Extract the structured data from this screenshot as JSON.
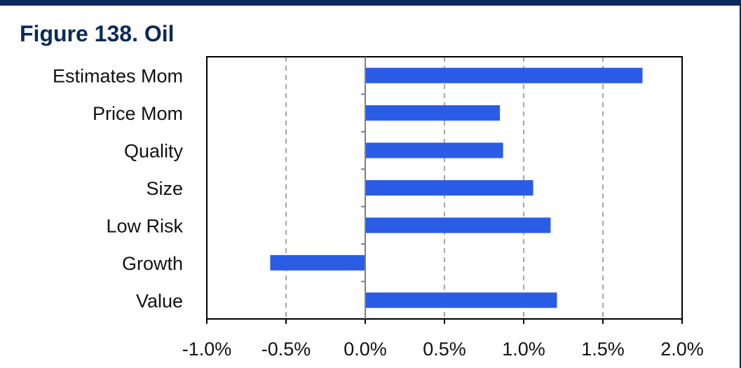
{
  "figure": {
    "title": "Figure 138. Oil"
  },
  "colors": {
    "bar": "#2b5ce6",
    "frame": "#0b2a5b",
    "grid": "#a6a6a6",
    "axis": "#000000"
  },
  "chart_data": {
    "type": "bar",
    "orientation": "horizontal",
    "title": "Figure 138. Oil",
    "xlabel": "",
    "ylabel": "",
    "categories": [
      "Estimates Mom",
      "Price Mom",
      "Quality",
      "Size",
      "Low Risk",
      "Growth",
      "Value"
    ],
    "values": [
      1.75,
      0.85,
      0.87,
      1.06,
      1.17,
      -0.6,
      1.21
    ],
    "value_unit": "%",
    "xlim": [
      -1.0,
      2.0
    ],
    "x_ticks": [
      -1.0,
      -0.5,
      0.0,
      0.5,
      1.0,
      1.5,
      2.0
    ],
    "x_tick_labels": [
      "-1.0%",
      "-0.5%",
      "0.0%",
      "0.5%",
      "1.0%",
      "1.5%",
      "2.0%"
    ],
    "grid": "vertical dashed",
    "legend": "none"
  }
}
